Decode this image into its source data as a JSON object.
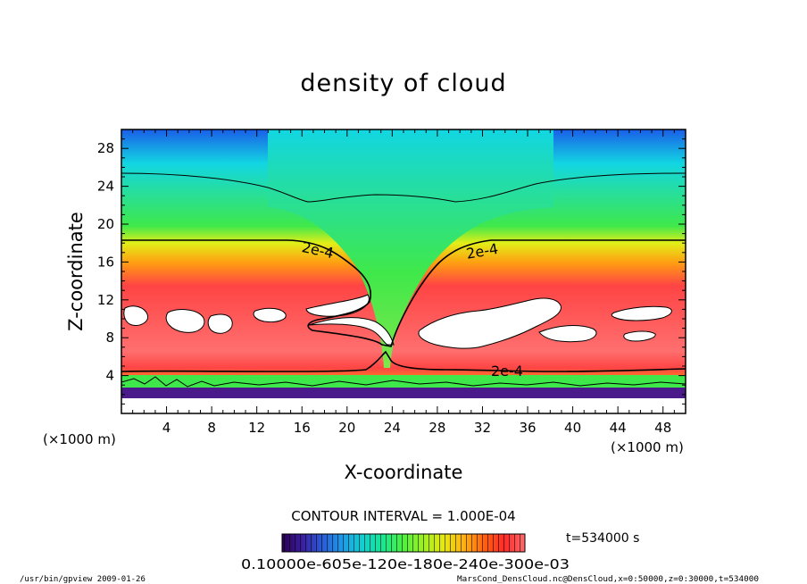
{
  "chart_data": {
    "type": "heatmap",
    "title": "density of cloud",
    "xlabel": "X-coordinate",
    "ylabel": "Z-coordinate",
    "x_unit": "(×1000 m)",
    "y_unit": "(×1000 m)",
    "xlim": [
      0,
      50
    ],
    "ylim": [
      0,
      30
    ],
    "x_ticks": [
      "4",
      "8",
      "12",
      "16",
      "20",
      "24",
      "28",
      "32",
      "36",
      "40",
      "44",
      "48"
    ],
    "y_ticks": [
      "4",
      "8",
      "12",
      "16",
      "20",
      "24",
      "28"
    ],
    "contour_labels": [
      "2e-4",
      "2e-4",
      "2e-4"
    ],
    "contour_interval_text": "CONTOUR INTERVAL = 1.000E-04",
    "time_text": "t=534000  s",
    "colorbar_labels": "0.10000e-605e-120e-180e-240e-300e-03",
    "colorbar_colors": [
      "#2a0050",
      "#3a1ea0",
      "#2a5cd8",
      "#1c9ce8",
      "#10d0d0",
      "#18e890",
      "#50f040",
      "#a0f020",
      "#e8e810",
      "#ffb010",
      "#ff6010",
      "#ff2a2a",
      "#ff6b6b"
    ],
    "field_colors": {
      "top": "#1a5ee8",
      "cyan": "#12d6e2",
      "green": "#3fe84a",
      "yellow": "#e2ef18",
      "orange": "#ff9d12",
      "red": "#ff4444",
      "pink": "#ff6f6f",
      "low_cloud": "#8be04a",
      "bottom": "#4b1a8a"
    }
  },
  "footer": {
    "program": "/usr/bin/gpview   2009-01-26",
    "source": "MarsCond_DensCloud.nc@DensCloud,x=0:50000,z=0:30000,t=534000"
  }
}
